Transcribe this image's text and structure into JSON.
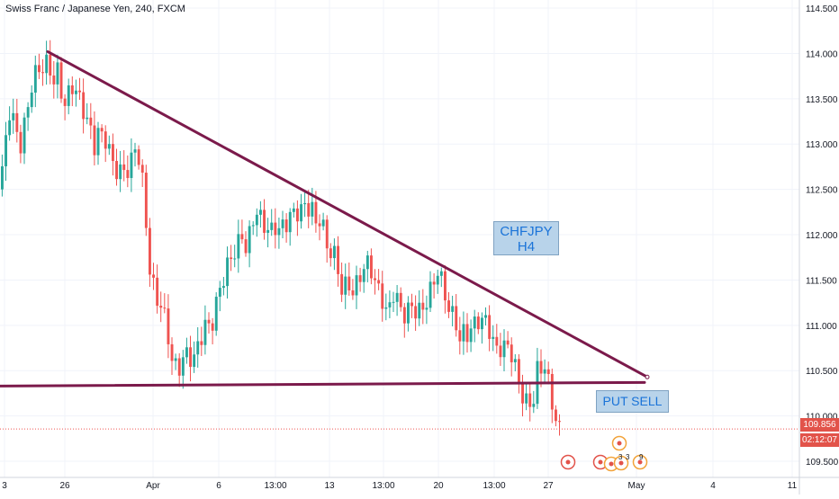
{
  "header": {
    "symbol_title": "Swiss Franc / Japanese Yen, 240, FXCM"
  },
  "annotations": {
    "note_pair": {
      "line1": "CHFJPY",
      "line2": "H4"
    },
    "note_signal": "PUT SELL"
  },
  "price_axis": {
    "last_price": "109.856",
    "countdown": "02:12:07"
  },
  "event_icon_labels": [
    "3",
    "3",
    "9"
  ],
  "colors": {
    "up": "#26a69a",
    "down": "#ef5350",
    "trendline": "#7b1a4b",
    "note_fill": "#b8d3ea",
    "note_text": "#1a73d8",
    "price_badge": "#e2534a"
  },
  "chart_data": {
    "type": "candlestick",
    "title": "Swiss Franc / Japanese Yen, 240, FXCM",
    "ylim": [
      109.3,
      114.55
    ],
    "y_ticks": [
      "114.500",
      "114.000",
      "113.500",
      "113.000",
      "112.500",
      "112.000",
      "111.500",
      "111.000",
      "110.500",
      "110.000",
      "109.500"
    ],
    "x_ticks": [
      "3",
      "26",
      "Apr",
      "6",
      "13:00",
      "13",
      "13:00",
      "20",
      "13:00",
      "27",
      "May",
      "4",
      "11"
    ],
    "grid": true,
    "last_price": 109.856,
    "waypoints": [
      [
        0,
        112.5
      ],
      [
        10,
        113.4
      ],
      [
        22,
        113.0
      ],
      [
        35,
        113.6
      ],
      [
        50,
        113.9
      ],
      [
        62,
        113.8
      ],
      [
        70,
        113.3
      ],
      [
        80,
        113.6
      ],
      [
        95,
        113.4
      ],
      [
        105,
        113.0
      ],
      [
        115,
        113.0
      ],
      [
        125,
        112.8
      ],
      [
        140,
        112.8
      ],
      [
        150,
        112.9
      ],
      [
        158,
        112.5
      ],
      [
        165,
        111.7
      ],
      [
        172,
        111.4
      ],
      [
        178,
        111.3
      ],
      [
        183,
        111.0
      ],
      [
        190,
        110.5
      ],
      [
        198,
        110.6
      ],
      [
        205,
        110.8
      ],
      [
        215,
        110.7
      ],
      [
        225,
        110.9
      ],
      [
        235,
        111.1
      ],
      [
        242,
        111.5
      ],
      [
        250,
        111.7
      ],
      [
        262,
        111.8
      ],
      [
        272,
        111.9
      ],
      [
        282,
        112.4
      ],
      [
        292,
        112.1
      ],
      [
        302,
        111.9
      ],
      [
        312,
        112.2
      ],
      [
        322,
        112.3
      ],
      [
        335,
        112.2
      ],
      [
        345,
        112.2
      ],
      [
        355,
        112.3
      ],
      [
        362,
        111.9
      ],
      [
        370,
        111.7
      ],
      [
        378,
        111.3
      ],
      [
        388,
        111.4
      ],
      [
        398,
        111.6
      ],
      [
        408,
        111.6
      ],
      [
        418,
        111.3
      ],
      [
        428,
        111.2
      ],
      [
        436,
        111.4
      ],
      [
        446,
        111.0
      ],
      [
        455,
        111.1
      ],
      [
        465,
        111.2
      ],
      [
        475,
        111.3
      ],
      [
        485,
        111.5
      ],
      [
        495,
        111.2
      ],
      [
        505,
        111.1
      ],
      [
        512,
        110.9
      ],
      [
        520,
        110.8
      ],
      [
        530,
        111.0
      ],
      [
        540,
        111.1
      ],
      [
        548,
        110.9
      ],
      [
        556,
        110.6
      ],
      [
        564,
        110.7
      ],
      [
        572,
        110.5
      ],
      [
        580,
        110.3
      ],
      [
        588,
        110.2
      ],
      [
        596,
        110.4
      ],
      [
        604,
        110.5
      ],
      [
        612,
        110.2
      ],
      [
        618,
        110.0
      ],
      [
        624,
        109.85
      ]
    ],
    "trendlines": [
      {
        "name": "descending resistance",
        "points": [
          [
            53,
            114.02
          ],
          [
            719,
            110.43
          ]
        ]
      },
      {
        "name": "support",
        "points": [
          [
            0,
            110.33
          ],
          [
            716,
            110.37
          ]
        ]
      }
    ],
    "last_price_line": 109.856
  }
}
